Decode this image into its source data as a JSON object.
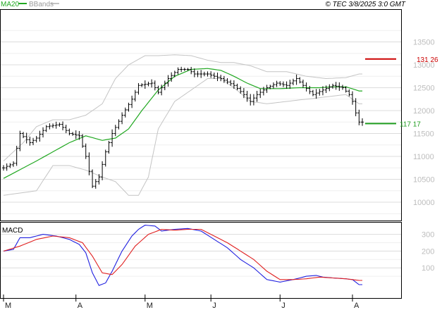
{
  "header": {
    "ma_label": "MA20",
    "bb_label": "BBands",
    "copyright": "© TEC 3/8/2025 3:0 GMT"
  },
  "colors": {
    "ma": "#21a821",
    "bb": "#c4c4c4",
    "macd": "#2020e0",
    "signal": "#e02020",
    "resistance": "#cc0000",
    "support": "#1d9c1d",
    "grid": "#dcdcdc",
    "price": "#000000"
  },
  "chart_data": [
    {
      "type": "line",
      "panel": "price",
      "ylim": [
        9600,
        14200
      ],
      "yticks": [
        10000,
        10500,
        11000,
        11500,
        12000,
        12500,
        13000,
        13500
      ],
      "ytick_labels": [
        "10000",
        "10500",
        "11000",
        "11500",
        "12000",
        "12500",
        "13000",
        "13500"
      ],
      "x_month_labels": [
        {
          "label": "M",
          "index": 0
        },
        {
          "label": "A",
          "index": 22
        },
        {
          "label": "M",
          "index": 43
        },
        {
          "label": "J",
          "index": 63
        },
        {
          "label": "J",
          "index": 84
        },
        {
          "label": "A",
          "index": 106
        }
      ],
      "n_bars": 110,
      "anchors": [
        [
          0,
          10750
        ],
        [
          3,
          10850
        ],
        [
          5,
          11500
        ],
        [
          8,
          11300
        ],
        [
          10,
          11400
        ],
        [
          13,
          11650
        ],
        [
          17,
          11700
        ],
        [
          20,
          11500
        ],
        [
          23,
          11450
        ],
        [
          25,
          11000
        ],
        [
          27,
          10350
        ],
        [
          29,
          10550
        ],
        [
          31,
          11100
        ],
        [
          33,
          11500
        ],
        [
          36,
          11900
        ],
        [
          39,
          12250
        ],
        [
          41,
          12550
        ],
        [
          45,
          12600
        ],
        [
          47,
          12400
        ],
        [
          50,
          12700
        ],
        [
          53,
          12900
        ],
        [
          56,
          12900
        ],
        [
          58,
          12800
        ],
        [
          62,
          12800
        ],
        [
          66,
          12700
        ],
        [
          70,
          12550
        ],
        [
          73,
          12350
        ],
        [
          75,
          12200
        ],
        [
          77,
          12350
        ],
        [
          80,
          12500
        ],
        [
          83,
          12600
        ],
        [
          86,
          12550
        ],
        [
          89,
          12700
        ],
        [
          91,
          12550
        ],
        [
          94,
          12350
        ],
        [
          97,
          12450
        ],
        [
          100,
          12550
        ],
        [
          103,
          12500
        ],
        [
          105,
          12350
        ],
        [
          106,
          12200
        ],
        [
          107,
          11950
        ],
        [
          108,
          11750
        ]
      ],
      "ma20_anchors": [
        [
          0,
          10520
        ],
        [
          10,
          10900
        ],
        [
          20,
          11300
        ],
        [
          25,
          11450
        ],
        [
          30,
          11350
        ],
        [
          34,
          11400
        ],
        [
          38,
          11600
        ],
        [
          42,
          12000
        ],
        [
          47,
          12450
        ],
        [
          52,
          12750
        ],
        [
          57,
          12900
        ],
        [
          62,
          12920
        ],
        [
          66,
          12880
        ],
        [
          70,
          12750
        ],
        [
          74,
          12600
        ],
        [
          78,
          12480
        ],
        [
          84,
          12480
        ],
        [
          90,
          12500
        ],
        [
          96,
          12500
        ],
        [
          100,
          12520
        ],
        [
          104,
          12520
        ],
        [
          108,
          12430
        ]
      ],
      "bb_upper_anchors": [
        [
          0,
          10900
        ],
        [
          6,
          11300
        ],
        [
          10,
          11650
        ],
        [
          15,
          11800
        ],
        [
          20,
          11800
        ],
        [
          25,
          11900
        ],
        [
          30,
          12150
        ],
        [
          34,
          12700
        ],
        [
          38,
          13000
        ],
        [
          43,
          13200
        ],
        [
          47,
          13200
        ],
        [
          52,
          13220
        ],
        [
          57,
          13200
        ],
        [
          62,
          13100
        ],
        [
          66,
          13050
        ],
        [
          70,
          13050
        ],
        [
          75,
          12980
        ],
        [
          80,
          12850
        ],
        [
          86,
          12850
        ],
        [
          92,
          12750
        ],
        [
          98,
          12700
        ],
        [
          104,
          12720
        ],
        [
          108,
          12800
        ]
      ],
      "bb_lower_anchors": [
        [
          0,
          10150
        ],
        [
          5,
          10200
        ],
        [
          10,
          10250
        ],
        [
          15,
          10800
        ],
        [
          20,
          10800
        ],
        [
          25,
          10700
        ],
        [
          30,
          10550
        ],
        [
          34,
          10450
        ],
        [
          38,
          10150
        ],
        [
          41,
          10150
        ],
        [
          44,
          10550
        ],
        [
          47,
          11600
        ],
        [
          52,
          12200
        ],
        [
          57,
          12450
        ],
        [
          62,
          12700
        ],
        [
          66,
          12700
        ],
        [
          70,
          12500
        ],
        [
          75,
          12200
        ],
        [
          80,
          12150
        ],
        [
          86,
          12200
        ],
        [
          92,
          12250
        ],
        [
          98,
          12300
        ],
        [
          104,
          12350
        ],
        [
          108,
          12150
        ]
      ],
      "levels": [
        {
          "label": "131 26",
          "value": 13126,
          "kind": "resistance"
        },
        {
          "label": "117 17",
          "value": 11717,
          "kind": "support"
        }
      ]
    },
    {
      "type": "line",
      "panel": "macd",
      "title": "MACD",
      "ylim": [
        -80,
        370
      ],
      "yticks": [
        100,
        200,
        300
      ],
      "ytick_labels": [
        "100",
        "200",
        "300"
      ],
      "series": [
        {
          "kind": "macd",
          "anchors": [
            [
              0,
              200
            ],
            [
              3,
              210
            ],
            [
              5,
              280
            ],
            [
              8,
              280
            ],
            [
              12,
              300
            ],
            [
              16,
              290
            ],
            [
              20,
              270
            ],
            [
              23,
              240
            ],
            [
              25,
              190
            ],
            [
              27,
              70
            ],
            [
              29,
              -5
            ],
            [
              31,
              10
            ],
            [
              33,
              80
            ],
            [
              36,
              200
            ],
            [
              39,
              290
            ],
            [
              41,
              330
            ],
            [
              43,
              355
            ],
            [
              46,
              350
            ],
            [
              48,
              320
            ],
            [
              52,
              330
            ],
            [
              56,
              335
            ],
            [
              60,
              320
            ],
            [
              64,
              270
            ],
            [
              68,
              220
            ],
            [
              72,
              150
            ],
            [
              76,
              100
            ],
            [
              80,
              30
            ],
            [
              84,
              15
            ],
            [
              88,
              30
            ],
            [
              92,
              50
            ],
            [
              95,
              55
            ],
            [
              97,
              45
            ],
            [
              100,
              40
            ],
            [
              104,
              35
            ],
            [
              106,
              30
            ],
            [
              108,
              0
            ]
          ]
        },
        {
          "kind": "signal",
          "anchors": [
            [
              0,
              200
            ],
            [
              5,
              230
            ],
            [
              10,
              270
            ],
            [
              15,
              290
            ],
            [
              20,
              280
            ],
            [
              24,
              250
            ],
            [
              27,
              170
            ],
            [
              30,
              70
            ],
            [
              33,
              60
            ],
            [
              36,
              120
            ],
            [
              40,
              230
            ],
            [
              44,
              300
            ],
            [
              48,
              330
            ],
            [
              52,
              325
            ],
            [
              56,
              330
            ],
            [
              60,
              330
            ],
            [
              64,
              290
            ],
            [
              68,
              250
            ],
            [
              72,
              200
            ],
            [
              76,
              150
            ],
            [
              80,
              80
            ],
            [
              84,
              30
            ],
            [
              88,
              30
            ],
            [
              92,
              35
            ],
            [
              96,
              45
            ],
            [
              100,
              40
            ],
            [
              104,
              35
            ],
            [
              108,
              25
            ]
          ]
        }
      ]
    }
  ]
}
